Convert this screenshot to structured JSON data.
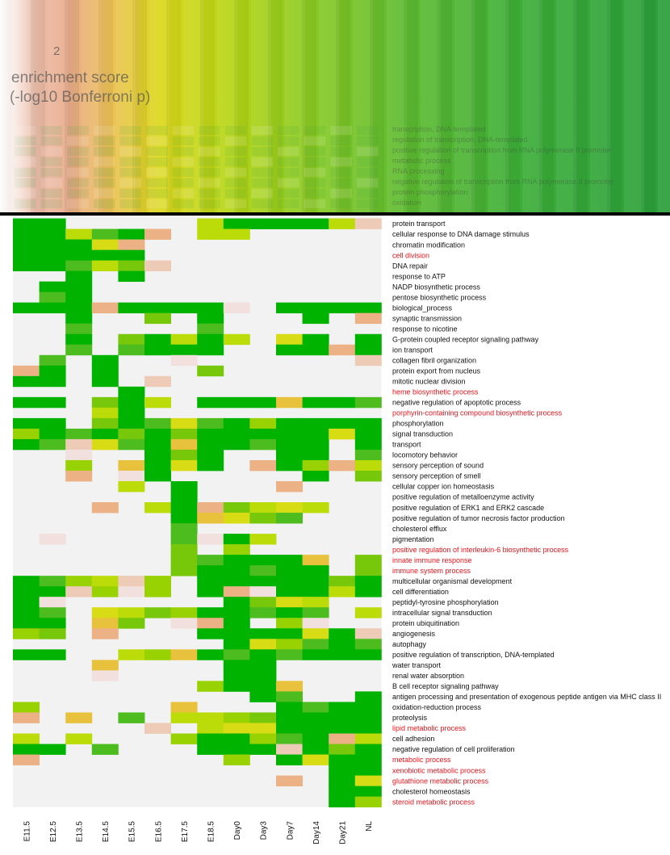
{
  "chart_data": {
    "type": "heatmap",
    "legend_fragments": {
      "title_line1": "enrichment score",
      "title_line2": "(-log10 Bonferroni p)",
      "tick": "2"
    },
    "background_terms": [
      "transcription, DNA-templated",
      "regulation of transcription, DNA-templated",
      "positive regulation of transcription from RNA polymerase II promoter",
      "metabolic process",
      "RNA processing",
      "negative regulation of transcription from RNA polymerase II promoter",
      "protein phosphorylation",
      "oxidation"
    ],
    "columns": [
      "E11.5",
      "E12.5",
      "E13.5",
      "E14.5",
      "E15.5",
      "E16.5",
      "E17.5",
      "E18.5",
      "Day0",
      "Day3",
      "Day7",
      "Day14",
      "Day21",
      "NL"
    ],
    "levels": {
      "0": "#f2f2f2",
      "1": "#f2e0de",
      "2": "#eecbb7",
      "3": "#ecb285",
      "4": "#e8c23c",
      "5": "#d8dc14",
      "6": "#bcdc0a",
      "7": "#99d203",
      "8": "#77c80b",
      "9": "#4cbc1f",
      "10": "#00b300"
    },
    "rows": [
      {
        "term": "protein transport",
        "highlight": false,
        "values": [
          10,
          10,
          0,
          0,
          0,
          0,
          0,
          6,
          10,
          10,
          10,
          10,
          6,
          2
        ]
      },
      {
        "term": "cellular response to DNA damage stimulus",
        "highlight": false,
        "values": [
          10,
          10,
          6,
          9,
          10,
          3,
          0,
          6,
          6,
          0,
          0,
          0,
          0,
          0
        ]
      },
      {
        "term": "chromatin modification",
        "highlight": false,
        "values": [
          10,
          10,
          10,
          5,
          3,
          0,
          0,
          0,
          0,
          0,
          0,
          0,
          0,
          0
        ]
      },
      {
        "term": "cell division",
        "highlight": true,
        "values": [
          10,
          10,
          10,
          10,
          10,
          0,
          0,
          0,
          0,
          0,
          0,
          0,
          0,
          0
        ]
      },
      {
        "term": "DNA repair",
        "highlight": false,
        "values": [
          10,
          10,
          9,
          6,
          8,
          2,
          0,
          0,
          0,
          0,
          0,
          0,
          0,
          0
        ]
      },
      {
        "term": "response to ATP",
        "highlight": false,
        "values": [
          0,
          0,
          10,
          0,
          10,
          0,
          0,
          0,
          0,
          0,
          0,
          0,
          0,
          0
        ]
      },
      {
        "term": "NADP biosynthetic process",
        "highlight": false,
        "values": [
          0,
          10,
          10,
          0,
          0,
          0,
          0,
          0,
          0,
          0,
          0,
          0,
          0,
          0
        ]
      },
      {
        "term": "pentose biosynthetic process",
        "highlight": false,
        "values": [
          0,
          9,
          10,
          0,
          0,
          0,
          0,
          0,
          0,
          0,
          0,
          0,
          0,
          0
        ]
      },
      {
        "term": "biological_process",
        "highlight": false,
        "values": [
          10,
          10,
          10,
          3,
          10,
          10,
          10,
          10,
          1,
          0,
          10,
          10,
          10,
          10
        ]
      },
      {
        "term": "synaptic transmission",
        "highlight": false,
        "values": [
          0,
          0,
          10,
          0,
          0,
          8,
          0,
          10,
          0,
          0,
          0,
          10,
          0,
          3
        ]
      },
      {
        "term": "response to nicotine",
        "highlight": false,
        "values": [
          0,
          0,
          9,
          0,
          0,
          0,
          0,
          9,
          0,
          0,
          0,
          0,
          0,
          0
        ]
      },
      {
        "term": "G-protein coupled receptor signaling pathway",
        "highlight": false,
        "values": [
          0,
          0,
          10,
          0,
          8,
          10,
          6,
          10,
          6,
          0,
          5,
          10,
          0,
          10
        ]
      },
      {
        "term": "ion transport",
        "highlight": false,
        "values": [
          0,
          0,
          9,
          0,
          9,
          10,
          10,
          10,
          0,
          0,
          10,
          10,
          3,
          10
        ]
      },
      {
        "term": "collagen fibril organization",
        "highlight": false,
        "values": [
          0,
          9,
          0,
          10,
          0,
          0,
          1,
          0,
          0,
          0,
          0,
          0,
          0,
          2
        ]
      },
      {
        "term": "protein export from nucleus",
        "highlight": false,
        "values": [
          3,
          10,
          0,
          10,
          0,
          0,
          0,
          8,
          0,
          0,
          0,
          0,
          0,
          0
        ]
      },
      {
        "term": "mitotic nuclear division",
        "highlight": false,
        "values": [
          10,
          10,
          0,
          10,
          0,
          2,
          0,
          0,
          0,
          0,
          0,
          0,
          0,
          0
        ]
      },
      {
        "term": "heme biosynthetic process",
        "highlight": true,
        "values": [
          0,
          0,
          0,
          0,
          10,
          0,
          0,
          0,
          0,
          0,
          0,
          0,
          0,
          0
        ]
      },
      {
        "term": "negative regulation of apoptotic process",
        "highlight": false,
        "values": [
          10,
          10,
          0,
          8,
          10,
          6,
          0,
          10,
          10,
          10,
          4,
          10,
          10,
          9
        ]
      },
      {
        "term": "porphyrin-containing compound biosynthetic process",
        "highlight": true,
        "values": [
          0,
          0,
          0,
          6,
          10,
          0,
          0,
          0,
          0,
          0,
          0,
          0,
          0,
          0
        ]
      },
      {
        "term": "phosphorylation",
        "highlight": false,
        "values": [
          10,
          10,
          0,
          8,
          10,
          9,
          5,
          9,
          10,
          7,
          10,
          10,
          10,
          10
        ]
      },
      {
        "term": "signal transduction",
        "highlight": false,
        "values": [
          7,
          10,
          9,
          10,
          8,
          10,
          8,
          10,
          10,
          10,
          10,
          10,
          5,
          10
        ]
      },
      {
        "term": "transport",
        "highlight": false,
        "values": [
          10,
          9,
          2,
          5,
          9,
          10,
          4,
          10,
          10,
          9,
          10,
          10,
          0,
          10
        ]
      },
      {
        "term": "locomotory behavior",
        "highlight": false,
        "values": [
          0,
          0,
          1,
          0,
          0,
          10,
          8,
          10,
          0,
          0,
          10,
          10,
          0,
          9
        ]
      },
      {
        "term": "sensory perception of sound",
        "highlight": false,
        "values": [
          0,
          0,
          7,
          0,
          4,
          10,
          5,
          10,
          0,
          3,
          10,
          7,
          3,
          6
        ]
      },
      {
        "term": "sensory perception of smell",
        "highlight": false,
        "values": [
          0,
          0,
          3,
          0,
          1,
          10,
          0,
          0,
          0,
          0,
          0,
          10,
          0,
          8
        ]
      },
      {
        "term": "cellular copper ion homeostasis",
        "highlight": false,
        "values": [
          0,
          0,
          0,
          0,
          6,
          0,
          10,
          0,
          0,
          0,
          3,
          0,
          0,
          0
        ]
      },
      {
        "term": "positive regulation of metalloenzyme activity",
        "highlight": false,
        "values": [
          0,
          0,
          0,
          0,
          0,
          0,
          10,
          0,
          0,
          0,
          0,
          0,
          0,
          0
        ]
      },
      {
        "term": "positive regulation of ERK1 and ERK2 cascade",
        "highlight": false,
        "values": [
          0,
          0,
          0,
          3,
          0,
          6,
          10,
          3,
          8,
          6,
          5,
          6,
          0,
          0
        ]
      },
      {
        "term": "positive regulation of tumor necrosis factor production",
        "highlight": false,
        "values": [
          0,
          0,
          0,
          0,
          0,
          0,
          10,
          4,
          5,
          8,
          9,
          0,
          0,
          0
        ]
      },
      {
        "term": "cholesterol efflux",
        "highlight": false,
        "values": [
          0,
          0,
          0,
          0,
          0,
          0,
          9,
          0,
          0,
          0,
          0,
          0,
          0,
          0
        ]
      },
      {
        "term": "pigmentation",
        "highlight": false,
        "values": [
          0,
          1,
          0,
          0,
          0,
          0,
          9,
          1,
          10,
          6,
          0,
          0,
          0,
          0
        ]
      },
      {
        "term": "positive regulation of interleukin-6 biosynthetic process",
        "highlight": true,
        "values": [
          0,
          0,
          0,
          0,
          0,
          0,
          8,
          0,
          7,
          0,
          0,
          0,
          0,
          0
        ]
      },
      {
        "term": "innate immune response",
        "highlight": true,
        "values": [
          0,
          0,
          0,
          0,
          0,
          0,
          8,
          9,
          10,
          10,
          10,
          4,
          0,
          8
        ]
      },
      {
        "term": "immune system process",
        "highlight": true,
        "values": [
          0,
          0,
          0,
          0,
          0,
          0,
          8,
          10,
          10,
          9,
          10,
          10,
          0,
          8
        ]
      },
      {
        "term": "multicellular organismal development",
        "highlight": false,
        "values": [
          10,
          9,
          7,
          6,
          2,
          7,
          0,
          10,
          10,
          10,
          10,
          10,
          8,
          10
        ]
      },
      {
        "term": "cell differentiation",
        "highlight": false,
        "values": [
          10,
          10,
          2,
          7,
          1,
          7,
          0,
          10,
          3,
          1,
          10,
          10,
          6,
          10
        ]
      },
      {
        "term": "peptidyl-tyrosine phosphorylation",
        "highlight": false,
        "values": [
          10,
          1,
          0,
          0,
          0,
          0,
          0,
          0,
          10,
          8,
          5,
          6,
          0,
          0
        ]
      },
      {
        "term": "intracellular signal transduction",
        "highlight": false,
        "values": [
          10,
          9,
          0,
          5,
          6,
          8,
          7,
          10,
          10,
          9,
          10,
          9,
          0,
          6
        ]
      },
      {
        "term": "protein ubiquitination",
        "highlight": false,
        "values": [
          10,
          10,
          0,
          4,
          8,
          0,
          1,
          3,
          10,
          0,
          7,
          1,
          0,
          0
        ]
      },
      {
        "term": "angiogenesis",
        "highlight": false,
        "values": [
          7,
          8,
          0,
          3,
          0,
          0,
          0,
          10,
          10,
          10,
          10,
          5,
          10,
          2
        ]
      },
      {
        "term": "autophagy",
        "highlight": false,
        "values": [
          0,
          0,
          0,
          0,
          0,
          0,
          0,
          0,
          10,
          5,
          7,
          9,
          10,
          9
        ]
      },
      {
        "term": "positive regulation of transcription, DNA-templated",
        "highlight": false,
        "values": [
          10,
          10,
          0,
          0,
          6,
          7,
          4,
          10,
          9,
          10,
          9,
          10,
          10,
          10
        ]
      },
      {
        "term": "water transport",
        "highlight": false,
        "values": [
          0,
          0,
          0,
          4,
          0,
          0,
          0,
          0,
          10,
          10,
          0,
          0,
          0,
          0
        ]
      },
      {
        "term": "renal water absorption",
        "highlight": false,
        "values": [
          0,
          0,
          0,
          1,
          0,
          0,
          0,
          0,
          10,
          10,
          0,
          0,
          0,
          0
        ]
      },
      {
        "term": "B cell receptor signaling pathway",
        "highlight": false,
        "values": [
          0,
          0,
          0,
          0,
          0,
          0,
          0,
          7,
          10,
          10,
          4,
          0,
          0,
          0
        ]
      },
      {
        "term": "antigen processing and presentation of exogenous peptide antigen via MHC class II",
        "highlight": false,
        "values": [
          0,
          0,
          0,
          0,
          0,
          0,
          0,
          0,
          0,
          10,
          9,
          0,
          0,
          10
        ]
      },
      {
        "term": "oxidation-reduction process",
        "highlight": false,
        "values": [
          7,
          0,
          0,
          0,
          0,
          0,
          4,
          0,
          0,
          0,
          10,
          9,
          10,
          10
        ]
      },
      {
        "term": "proteolysis",
        "highlight": false,
        "values": [
          3,
          0,
          4,
          0,
          9,
          0,
          6,
          6,
          7,
          8,
          10,
          10,
          10,
          10
        ]
      },
      {
        "term": "lipid metabolic process",
        "highlight": true,
        "values": [
          0,
          0,
          0,
          0,
          0,
          2,
          0,
          6,
          5,
          5,
          10,
          10,
          10,
          10
        ]
      },
      {
        "term": "cell adhesion",
        "highlight": false,
        "values": [
          6,
          0,
          6,
          0,
          0,
          0,
          7,
          10,
          10,
          7,
          9,
          10,
          3,
          6
        ]
      },
      {
        "term": "negative regulation of cell proliferation",
        "highlight": false,
        "values": [
          10,
          10,
          0,
          9,
          0,
          0,
          0,
          10,
          10,
          10,
          2,
          10,
          8,
          10
        ]
      },
      {
        "term": "metabolic process",
        "highlight": true,
        "values": [
          3,
          0,
          0,
          0,
          0,
          0,
          0,
          0,
          7,
          0,
          10,
          5,
          10,
          10
        ]
      },
      {
        "term": "xenobiotic metabolic process",
        "highlight": true,
        "values": [
          0,
          0,
          0,
          0,
          0,
          0,
          0,
          0,
          0,
          0,
          0,
          0,
          10,
          10
        ]
      },
      {
        "term": "glutathione metabolic process",
        "highlight": true,
        "values": [
          0,
          0,
          0,
          0,
          0,
          0,
          0,
          0,
          0,
          0,
          3,
          0,
          10,
          5
        ]
      },
      {
        "term": "cholesterol homeostasis",
        "highlight": false,
        "values": [
          0,
          0,
          0,
          0,
          0,
          0,
          0,
          0,
          0,
          0,
          0,
          0,
          10,
          10
        ]
      },
      {
        "term": "steroid metabolic process",
        "highlight": true,
        "values": [
          0,
          0,
          0,
          0,
          0,
          0,
          0,
          0,
          0,
          0,
          0,
          0,
          10,
          7
        ]
      }
    ]
  }
}
